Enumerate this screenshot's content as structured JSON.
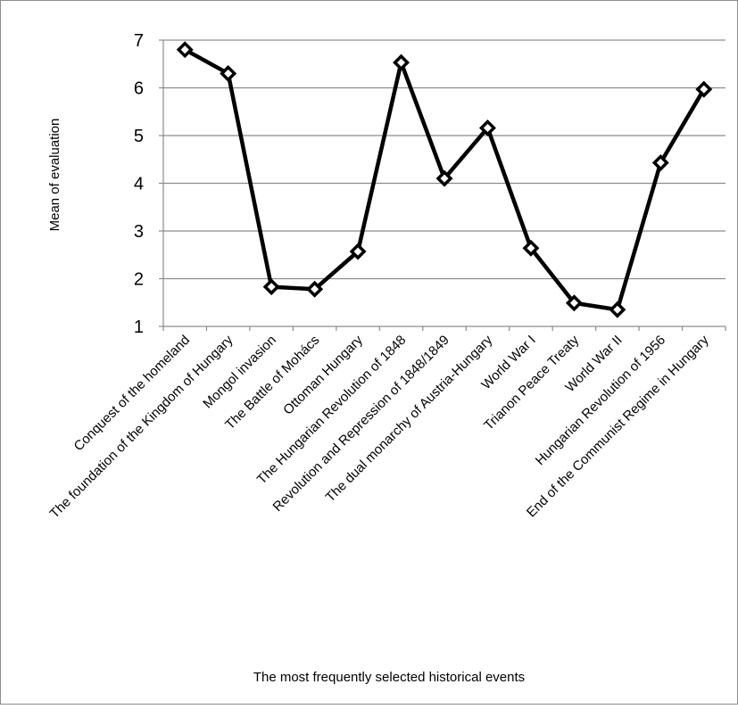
{
  "chart_data": {
    "type": "line",
    "title": "",
    "xlabel": "The most frequently selected historical events",
    "ylabel": "Mean of evaluation",
    "categories": [
      "Conquest of the homeland",
      "The foundation of the Kingdom of Hungary",
      "Mongol invasion",
      "The Battle of Mohács",
      "Ottoman Hungary",
      "The Hungarian Revolution of 1848",
      "Revolution and Repression of 1848/1849",
      "The dual monarchy of Austria-Hungary",
      "World War I",
      "Trianon Peace Treaty",
      "World War II",
      "Hungarian Revolution of 1956",
      "End of the Communist Regime in Hungary"
    ],
    "series": [
      {
        "values": [
          6.8,
          6.3,
          1.83,
          1.78,
          2.57,
          6.53,
          4.1,
          5.16,
          2.64,
          1.49,
          1.35,
          4.43,
          5.97
        ]
      }
    ],
    "ylim": [
      1,
      7
    ],
    "yticks": [
      1,
      2,
      3,
      4,
      5,
      6,
      7
    ],
    "grid": true,
    "legend": "none",
    "colors": {
      "line": "#000000",
      "marker_fill": "#ffffff",
      "grid": "#8c8c8c",
      "frame": "#8c8c8c"
    }
  }
}
